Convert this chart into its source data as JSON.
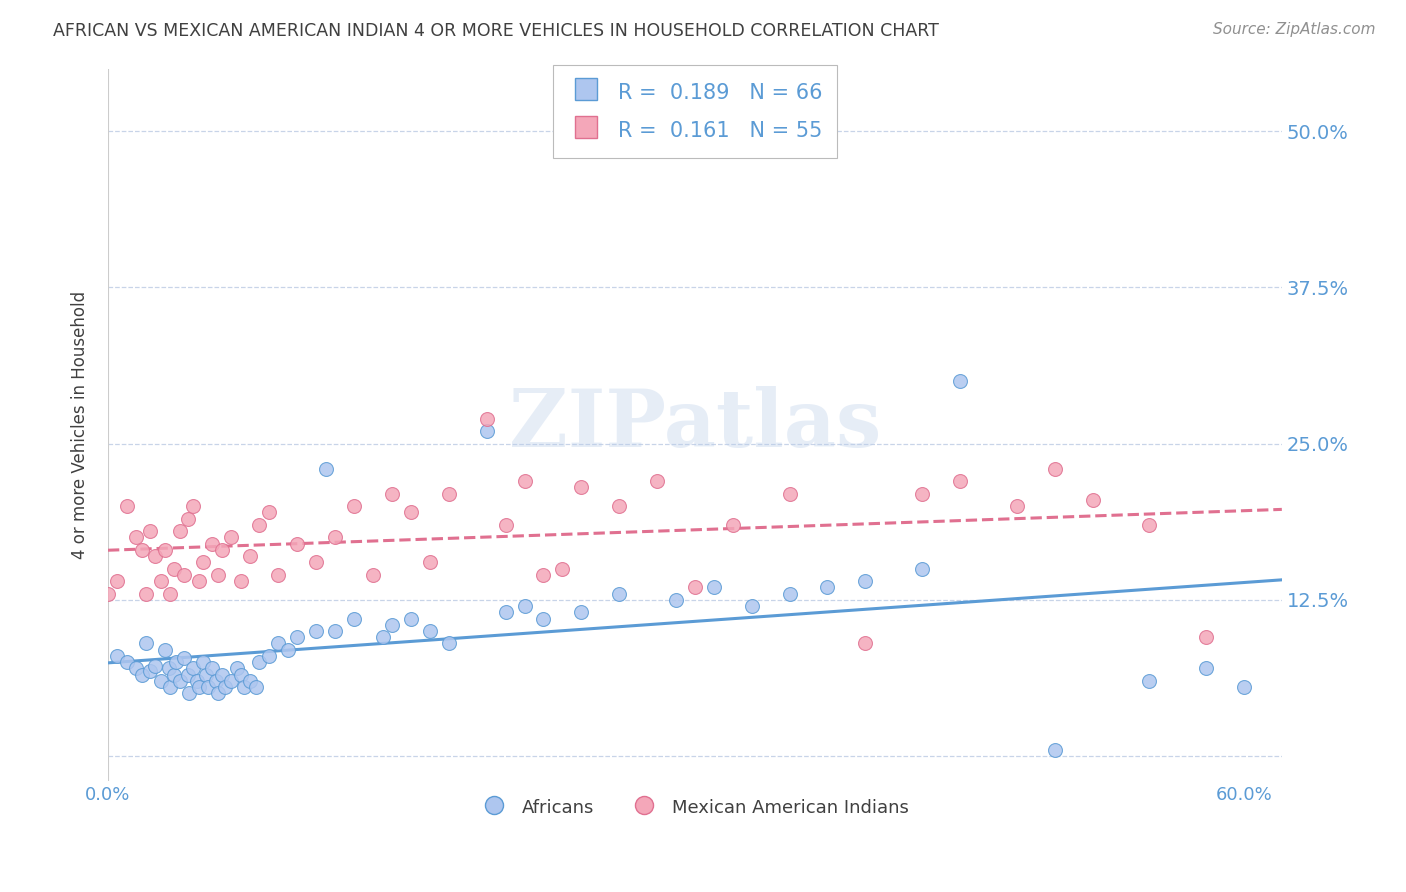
{
  "title": "AFRICAN VS MEXICAN AMERICAN INDIAN 4 OR MORE VEHICLES IN HOUSEHOLD CORRELATION CHART",
  "source": "Source: ZipAtlas.com",
  "ylabel": "4 or more Vehicles in Household",
  "xlim": [
    0.0,
    0.62
  ],
  "ylim": [
    -0.02,
    0.55
  ],
  "yticks": [
    0.0,
    0.125,
    0.25,
    0.375,
    0.5
  ],
  "ytick_labels": [
    "",
    "12.5%",
    "25.0%",
    "37.5%",
    "50.0%"
  ],
  "xticks": [
    0.0,
    0.1,
    0.2,
    0.3,
    0.4,
    0.5,
    0.6
  ],
  "xtick_labels": [
    "0.0%",
    "",
    "",
    "",
    "",
    "",
    "60.0%"
  ],
  "blue_R": 0.189,
  "blue_N": 66,
  "pink_R": 0.161,
  "pink_N": 55,
  "blue_color": "#aec6ef",
  "pink_color": "#f4a7b9",
  "blue_line_color": "#5b9bd5",
  "pink_line_color": "#e07090",
  "background_color": "#ffffff",
  "grid_color": "#c8d4e8",
  "title_color": "#404040",
  "source_color": "#909090",
  "right_tick_color": "#5b9bd5",
  "watermark": "ZIPatlas",
  "legend_label_blue": "Africans",
  "legend_label_pink": "Mexican American Indians",
  "blue_scatter_x": [
    0.005,
    0.01,
    0.015,
    0.018,
    0.02,
    0.022,
    0.025,
    0.028,
    0.03,
    0.032,
    0.033,
    0.035,
    0.036,
    0.038,
    0.04,
    0.042,
    0.043,
    0.045,
    0.047,
    0.048,
    0.05,
    0.052,
    0.053,
    0.055,
    0.057,
    0.058,
    0.06,
    0.062,
    0.065,
    0.068,
    0.07,
    0.072,
    0.075,
    0.078,
    0.08,
    0.085,
    0.09,
    0.095,
    0.1,
    0.11,
    0.115,
    0.12,
    0.13,
    0.145,
    0.15,
    0.16,
    0.17,
    0.18,
    0.2,
    0.21,
    0.22,
    0.23,
    0.25,
    0.27,
    0.3,
    0.32,
    0.34,
    0.36,
    0.38,
    0.4,
    0.43,
    0.45,
    0.5,
    0.55,
    0.58,
    0.6
  ],
  "blue_scatter_y": [
    0.08,
    0.075,
    0.07,
    0.065,
    0.09,
    0.068,
    0.072,
    0.06,
    0.085,
    0.07,
    0.055,
    0.065,
    0.075,
    0.06,
    0.078,
    0.065,
    0.05,
    0.07,
    0.06,
    0.055,
    0.075,
    0.065,
    0.055,
    0.07,
    0.06,
    0.05,
    0.065,
    0.055,
    0.06,
    0.07,
    0.065,
    0.055,
    0.06,
    0.055,
    0.075,
    0.08,
    0.09,
    0.085,
    0.095,
    0.1,
    0.23,
    0.1,
    0.11,
    0.095,
    0.105,
    0.11,
    0.1,
    0.09,
    0.26,
    0.115,
    0.12,
    0.11,
    0.115,
    0.13,
    0.125,
    0.135,
    0.12,
    0.13,
    0.135,
    0.14,
    0.15,
    0.3,
    0.005,
    0.06,
    0.07,
    0.055
  ],
  "pink_scatter_x": [
    0.0,
    0.005,
    0.01,
    0.015,
    0.018,
    0.02,
    0.022,
    0.025,
    0.028,
    0.03,
    0.033,
    0.035,
    0.038,
    0.04,
    0.042,
    0.045,
    0.048,
    0.05,
    0.055,
    0.058,
    0.06,
    0.065,
    0.07,
    0.075,
    0.08,
    0.085,
    0.09,
    0.1,
    0.11,
    0.12,
    0.13,
    0.14,
    0.15,
    0.16,
    0.17,
    0.18,
    0.2,
    0.21,
    0.22,
    0.23,
    0.24,
    0.25,
    0.27,
    0.29,
    0.31,
    0.33,
    0.36,
    0.4,
    0.43,
    0.45,
    0.48,
    0.5,
    0.52,
    0.55,
    0.58
  ],
  "pink_scatter_y": [
    0.13,
    0.14,
    0.2,
    0.175,
    0.165,
    0.13,
    0.18,
    0.16,
    0.14,
    0.165,
    0.13,
    0.15,
    0.18,
    0.145,
    0.19,
    0.2,
    0.14,
    0.155,
    0.17,
    0.145,
    0.165,
    0.175,
    0.14,
    0.16,
    0.185,
    0.195,
    0.145,
    0.17,
    0.155,
    0.175,
    0.2,
    0.145,
    0.21,
    0.195,
    0.155,
    0.21,
    0.27,
    0.185,
    0.22,
    0.145,
    0.15,
    0.215,
    0.2,
    0.22,
    0.135,
    0.185,
    0.21,
    0.09,
    0.21,
    0.22,
    0.2,
    0.23,
    0.205,
    0.185,
    0.095
  ]
}
